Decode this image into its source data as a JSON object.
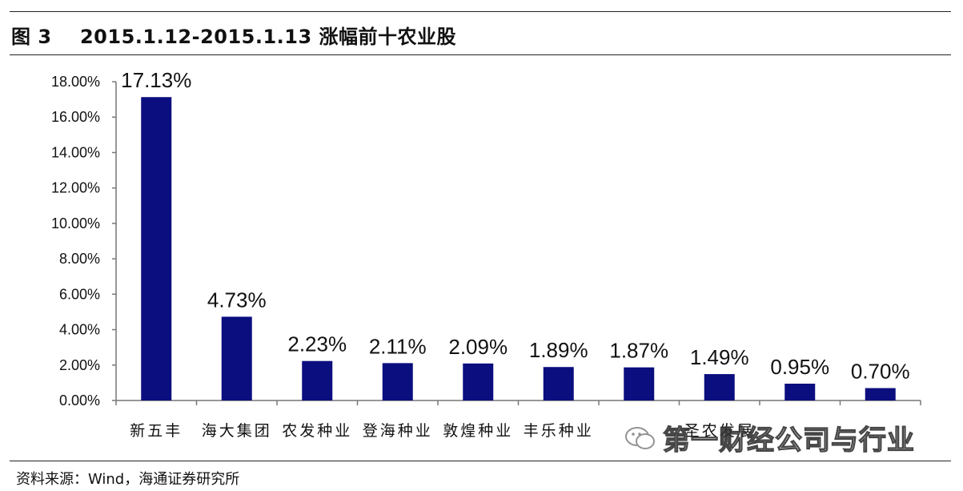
{
  "figure_title": "图 3    2015.1.12-2015.1.13 涨幅前十农业股",
  "source": "资料来源：Wind，海通证券研究所",
  "watermark": "第一财经公司与行业",
  "colors": {
    "bar": "#0B0E7E",
    "axis": "#777777",
    "text": "#111111"
  },
  "chart_data": {
    "type": "bar",
    "title": "",
    "xlabel": "",
    "ylabel": "",
    "categories": [
      "新五丰",
      "海大集团",
      "农发种业",
      "登海种业",
      "敦煌种业",
      "丰乐种业",
      "",
      "圣农发展",
      "",
      ""
    ],
    "values": [
      17.13,
      4.73,
      2.23,
      2.11,
      2.09,
      1.89,
      1.87,
      1.49,
      0.95,
      0.7
    ],
    "data_labels": [
      "17.13%",
      "4.73%",
      "2.23%",
      "2.11%",
      "2.09%",
      "1.89%",
      "1.87%",
      "1.49%",
      "0.95%",
      "0.70%"
    ],
    "ylim": [
      0,
      18
    ],
    "yticks": [
      0,
      2,
      4,
      6,
      8,
      10,
      12,
      14,
      16,
      18
    ],
    "ytick_labels": [
      "0.00%",
      "2.00%",
      "4.00%",
      "6.00%",
      "8.00%",
      "10.00%",
      "12.00%",
      "14.00%",
      "16.00%",
      "18.00%"
    ],
    "grid": false,
    "legend": "none"
  }
}
